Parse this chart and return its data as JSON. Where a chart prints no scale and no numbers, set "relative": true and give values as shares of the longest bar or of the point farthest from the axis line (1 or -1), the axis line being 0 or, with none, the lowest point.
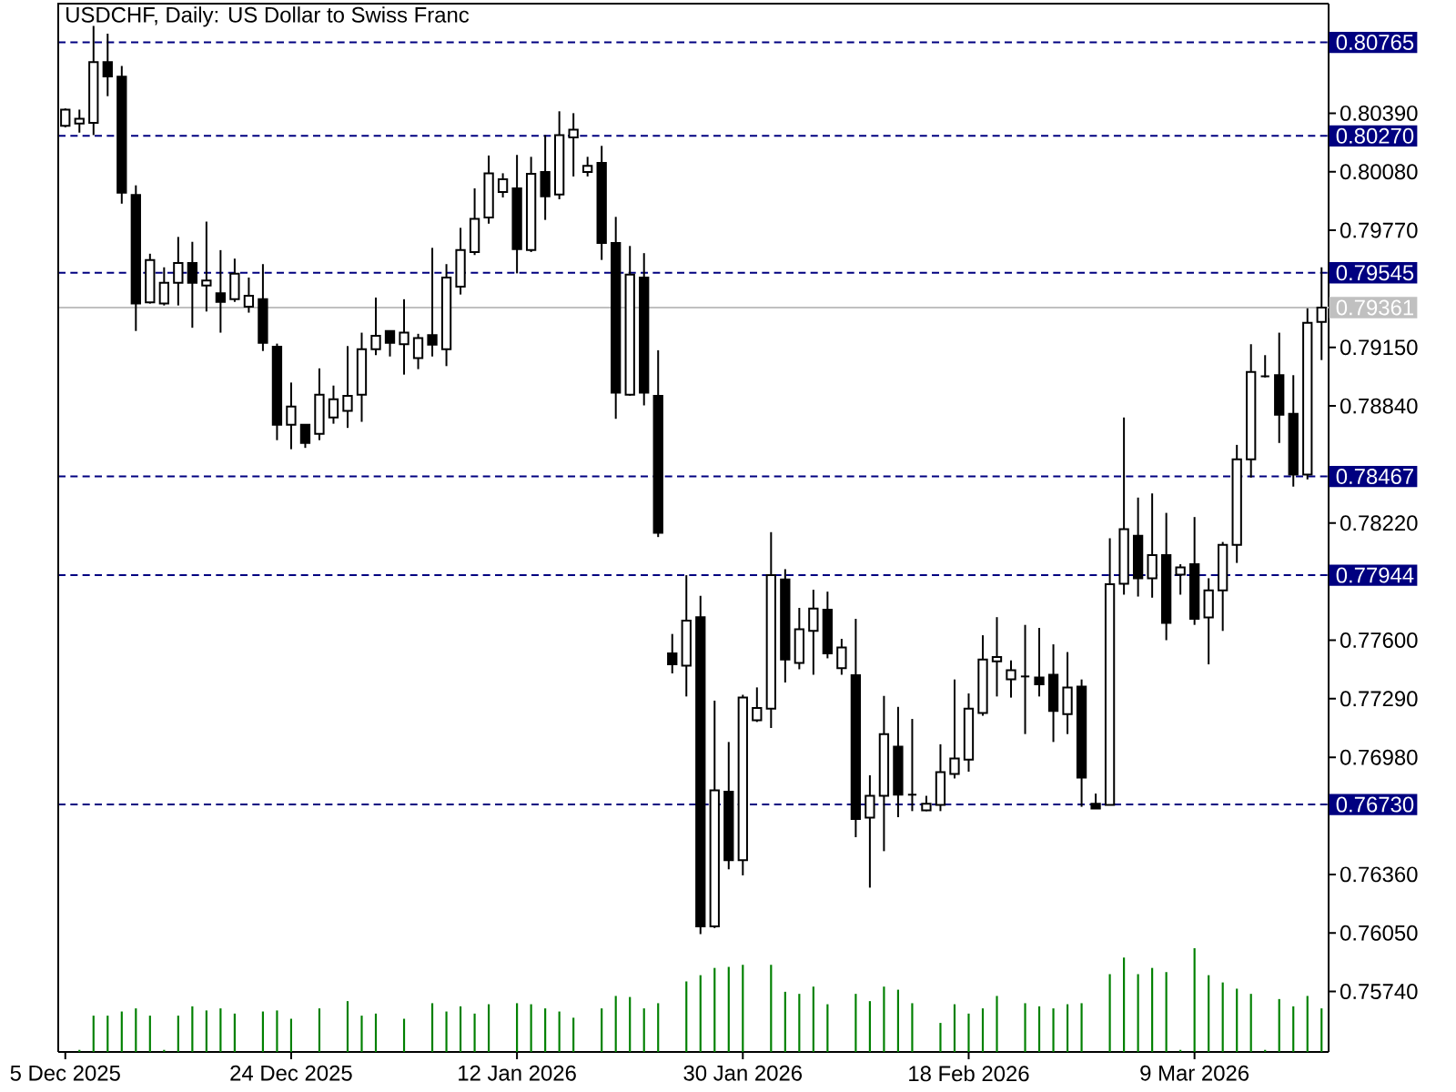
{
  "chart_data": [
    {
      "type": "candlestick",
      "title": "USDCHF, Daily:  US Dollar to Swiss Franc",
      "categories": [
        "5 Dec 2025",
        null,
        null,
        null,
        null,
        null,
        null,
        null,
        null,
        null,
        null,
        null,
        null,
        null,
        null,
        null,
        "24 Dec 2025",
        null,
        null,
        null,
        null,
        null,
        null,
        null,
        null,
        null,
        null,
        null,
        null,
        null,
        null,
        null,
        "12 Jan 2026",
        null,
        null,
        null,
        null,
        null,
        null,
        null,
        null,
        null,
        null,
        null,
        null,
        null,
        null,
        null,
        "30 Jan 2026",
        null,
        null,
        null,
        null,
        null,
        null,
        null,
        null,
        null,
        null,
        null,
        null,
        null,
        null,
        null,
        "18 Feb 2026",
        null,
        null,
        null,
        null,
        null,
        null,
        null,
        null,
        null,
        null,
        null,
        null,
        null,
        null,
        null,
        "9 Mar 2026",
        null,
        null,
        null,
        null,
        null,
        null,
        null,
        null,
        null
      ],
      "ohlc": [
        [
          0.80323,
          0.80415,
          0.80315,
          0.80409
        ],
        [
          0.80335,
          0.80409,
          0.80287,
          0.80361
        ],
        [
          0.80339,
          0.80852,
          0.80274,
          0.8066
        ],
        [
          0.8066,
          0.80811,
          0.8048,
          0.80585
        ],
        [
          0.80583,
          0.8064,
          0.79911,
          0.79969
        ],
        [
          0.79957,
          0.80008,
          0.79237,
          0.79382
        ],
        [
          0.79388,
          0.79646,
          0.79382,
          0.79613
        ],
        [
          0.79382,
          0.79574,
          0.79372,
          0.79492
        ],
        [
          0.79492,
          0.79735,
          0.79372,
          0.79597
        ],
        [
          0.79597,
          0.79709,
          0.79254,
          0.79492
        ],
        [
          0.79478,
          0.79816,
          0.7934,
          0.79504
        ],
        [
          0.79437,
          0.79665,
          0.79228,
          0.79391
        ],
        [
          0.79405,
          0.7962,
          0.79391,
          0.7954
        ],
        [
          0.79366,
          0.7952,
          0.79334,
          0.79424
        ],
        [
          0.79405,
          0.79591,
          0.79131,
          0.79174
        ],
        [
          0.79154,
          0.7917,
          0.78659,
          0.7874
        ],
        [
          0.7874,
          0.78964,
          0.78611,
          0.78837
        ],
        [
          0.7874,
          0.7874,
          0.78618,
          0.78644
        ],
        [
          0.78692,
          0.79039,
          0.78659,
          0.789
        ],
        [
          0.78779,
          0.78948,
          0.78746,
          0.78875
        ],
        [
          0.78814,
          0.79157,
          0.78724,
          0.78894
        ],
        [
          0.789,
          0.79228,
          0.78756,
          0.79141
        ],
        [
          0.79141,
          0.79414,
          0.79109,
          0.79212
        ],
        [
          0.79237,
          0.79237,
          0.79102,
          0.79174
        ],
        [
          0.79167,
          0.79405,
          0.79006,
          0.79228
        ],
        [
          0.79093,
          0.79222,
          0.79035,
          0.79199
        ],
        [
          0.79215,
          0.79677,
          0.79102,
          0.79164
        ],
        [
          0.79141,
          0.79591,
          0.79051,
          0.7952
        ],
        [
          0.79472,
          0.79783,
          0.7943,
          0.79665
        ],
        [
          0.79655,
          0.79992,
          0.79639,
          0.79831
        ],
        [
          0.79838,
          0.80166,
          0.79805,
          0.80071
        ],
        [
          0.79973,
          0.80072,
          0.79944,
          0.8004
        ],
        [
          0.79992,
          0.80169,
          0.79542,
          0.79671
        ],
        [
          0.79665,
          0.80159,
          0.79655,
          0.80069
        ],
        [
          0.80079,
          0.80274,
          0.79825,
          0.7995
        ],
        [
          0.7996,
          0.804,
          0.79934,
          0.80274
        ],
        [
          0.80262,
          0.8039,
          0.80055,
          0.80303
        ],
        [
          0.80079,
          0.80159,
          0.80055,
          0.80111
        ],
        [
          0.80127,
          0.80217,
          0.79613,
          0.79703
        ],
        [
          0.79703,
          0.79841,
          0.78772,
          0.7891
        ],
        [
          0.789,
          0.79687,
          0.78894,
          0.79536
        ],
        [
          0.7952,
          0.79649,
          0.78843,
          0.7891
        ],
        [
          0.78894,
          0.79135,
          0.78146,
          0.78168
        ],
        [
          0.7753,
          0.77633,
          0.77424,
          0.77472
        ],
        [
          0.77465,
          0.77944,
          0.77302,
          0.77703
        ],
        [
          0.77722,
          0.77835,
          0.76044,
          0.76085
        ],
        [
          0.76085,
          0.7728,
          0.76076,
          0.76805
        ],
        [
          0.76798,
          0.77061,
          0.76387,
          0.76435
        ],
        [
          0.76435,
          0.77311,
          0.76355,
          0.77296
        ],
        [
          0.77176,
          0.7735,
          0.77167,
          0.77241
        ],
        [
          0.77238,
          0.78172,
          0.77135,
          0.77944
        ],
        [
          0.77922,
          0.77976,
          0.77376,
          0.77498
        ],
        [
          0.77479,
          0.77771,
          0.77446,
          0.77658
        ],
        [
          0.77649,
          0.77867,
          0.77417,
          0.77768
        ],
        [
          0.77761,
          0.77857,
          0.77504,
          0.7753
        ],
        [
          0.77452,
          0.77607,
          0.77417,
          0.77562
        ],
        [
          0.77415,
          0.77713,
          0.76557,
          0.76653
        ],
        [
          0.7666,
          0.76885,
          0.7629,
          0.76776
        ],
        [
          0.76776,
          0.77305,
          0.76483,
          0.77103
        ],
        [
          0.77036,
          0.77247,
          0.76663,
          0.76782
        ],
        [
          0.76782,
          0.77183,
          0.76695,
          0.76782
        ],
        [
          0.76699,
          0.76776,
          0.76695,
          0.76734
        ],
        [
          0.76728,
          0.77049,
          0.76695,
          0.76901
        ],
        [
          0.76892,
          0.77392,
          0.76868,
          0.76974
        ],
        [
          0.76968,
          0.77318,
          0.76904,
          0.77238
        ],
        [
          0.77215,
          0.77626,
          0.772,
          0.77498
        ],
        [
          0.77488,
          0.77722,
          0.77302,
          0.77511
        ],
        [
          0.77393,
          0.77493,
          0.77296,
          0.77441
        ],
        [
          0.77408,
          0.77681,
          0.77103,
          0.77408
        ],
        [
          0.77402,
          0.77665,
          0.77302,
          0.77366
        ],
        [
          0.77417,
          0.77578,
          0.77061,
          0.77225
        ],
        [
          0.77209,
          0.77537,
          0.77103,
          0.7735
        ],
        [
          0.77354,
          0.77392,
          0.76718,
          0.76872
        ],
        [
          0.76734,
          0.76788,
          0.76709,
          0.76709
        ],
        [
          0.76728,
          0.78139,
          0.76728,
          0.77896
        ],
        [
          0.77899,
          0.78779,
          0.77841,
          0.78188
        ],
        [
          0.78153,
          0.78355,
          0.77831,
          0.77928
        ],
        [
          0.77928,
          0.78377,
          0.77825,
          0.7805
        ],
        [
          0.7805,
          0.78274,
          0.776,
          0.77691
        ],
        [
          0.77947,
          0.78002,
          0.77841,
          0.77985
        ],
        [
          0.78002,
          0.78252,
          0.77681,
          0.77713
        ],
        [
          0.7772,
          0.77928,
          0.77472,
          0.77864
        ],
        [
          0.77864,
          0.7812,
          0.77649,
          0.78105
        ],
        [
          0.78105,
          0.78634,
          0.78009,
          0.78557
        ],
        [
          0.78557,
          0.79167,
          0.78461,
          0.7902
        ],
        [
          0.78997,
          0.79109,
          0.78991,
          0.78997
        ],
        [
          0.79003,
          0.79228,
          0.78644,
          0.78794
        ],
        [
          0.78798,
          0.79003,
          0.78413,
          0.78477
        ],
        [
          0.78477,
          0.79357,
          0.78451,
          0.7928
        ],
        [
          0.79285,
          0.79574,
          0.79083,
          0.79361
        ]
      ],
      "ylim": [
        0.7542,
        0.8097
      ],
      "yticks": [
        {
          "value": 0.8039,
          "label": "0.80390"
        },
        {
          "value": 0.8008,
          "label": "0.80080"
        },
        {
          "value": 0.7977,
          "label": "0.79770"
        },
        {
          "value": 0.7915,
          "label": "0.79150"
        },
        {
          "value": 0.7884,
          "label": "0.78840"
        },
        {
          "value": 0.7822,
          "label": "0.78220"
        },
        {
          "value": 0.776,
          "label": "0.77600"
        },
        {
          "value": 0.7729,
          "label": "0.77290"
        },
        {
          "value": 0.7698,
          "label": "0.76980"
        },
        {
          "value": 0.7636,
          "label": "0.76360"
        },
        {
          "value": 0.7605,
          "label": "0.76050"
        },
        {
          "value": 0.7574,
          "label": "0.75740"
        }
      ],
      "ref_lines": [
        {
          "axis": "y",
          "value": 0.80765,
          "label": "0.80765",
          "color": "#000080",
          "line_style": "dashed"
        },
        {
          "axis": "y",
          "value": 0.8027,
          "label": "0.80270",
          "color": "#000080",
          "line_style": "dashed"
        },
        {
          "axis": "y",
          "value": 0.79545,
          "label": "0.79545",
          "color": "#000080",
          "line_style": "dashed"
        },
        {
          "axis": "y",
          "value": 0.79361,
          "label": "0.79361",
          "color": "#c0c0c0",
          "line_style": "solid"
        },
        {
          "axis": "y",
          "value": 0.78467,
          "label": "0.78467",
          "color": "#000080",
          "line_style": "dashed"
        },
        {
          "axis": "y",
          "value": 0.77944,
          "label": "0.77944",
          "color": "#000080",
          "line_style": "dashed"
        },
        {
          "axis": "y",
          "value": 0.7673,
          "label": "0.76730",
          "color": "#000080",
          "line_style": "dashed"
        }
      ]
    },
    {
      "type": "bar",
      "relative": true,
      "color": "#008000",
      "categories": [
        null,
        null,
        null,
        null,
        null,
        null,
        null,
        null,
        null,
        null,
        null,
        null,
        null,
        null,
        null,
        null,
        null,
        null,
        null,
        null,
        null,
        null,
        null,
        null,
        null,
        null,
        null,
        null,
        null,
        null,
        null,
        null,
        null,
        null,
        null,
        null,
        null,
        null,
        null,
        null,
        null,
        null,
        null,
        null,
        null,
        null,
        null,
        null,
        null,
        null,
        null,
        null,
        null,
        null,
        null,
        null,
        null,
        null,
        null,
        null,
        null,
        null,
        null,
        null,
        null,
        null,
        null,
        null,
        null,
        null,
        null,
        null,
        null,
        null,
        null,
        null,
        null,
        null,
        null,
        null,
        null,
        null,
        null,
        null,
        null,
        null,
        null,
        null,
        null,
        null
      ],
      "values": [
        null,
        0.02,
        0.35,
        0.35,
        0.39,
        0.42,
        0.35,
        0.02,
        0.35,
        0.44,
        0.4,
        0.42,
        0.37,
        0,
        0.39,
        0.4,
        0.32,
        0,
        0.42,
        0,
        0.49,
        0.35,
        0.37,
        0,
        0.32,
        0,
        0.47,
        0.39,
        0.44,
        0.37,
        0.46,
        0,
        0.47,
        0.46,
        0.42,
        0.39,
        0.33,
        0,
        0.42,
        0.54,
        0.53,
        0.42,
        0.47,
        0,
        0.68,
        0.74,
        0.81,
        0.82,
        0.84,
        0,
        0.84,
        0.58,
        0.56,
        0.63,
        0.46,
        0,
        0.56,
        0.49,
        0.63,
        0.6,
        0.47,
        0,
        0.28,
        0.46,
        0.37,
        0.42,
        0.54,
        0,
        0.47,
        0.44,
        0.42,
        0.46,
        0.47,
        0,
        0.75,
        0.91,
        0.75,
        0.81,
        0.77,
        0.02,
        1,
        0.74,
        0.67,
        0.61,
        0.56,
        0.02,
        0.51,
        0.44,
        0.54,
        0.42
      ]
    }
  ]
}
